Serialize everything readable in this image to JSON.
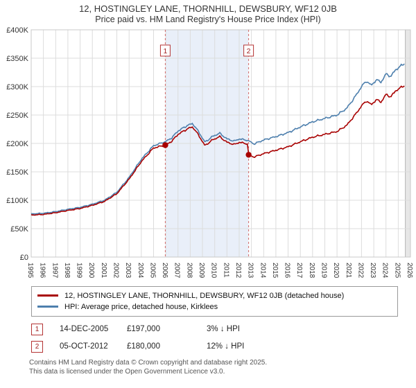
{
  "header": {
    "title": "12, HOSTINGLEY LANE, THORNHILL, DEWSBURY, WF12 0JB",
    "subtitle": "Price paid vs. HM Land Registry's House Price Index (HPI)"
  },
  "chart_data": {
    "type": "line",
    "title": "12, HOSTINGLEY LANE, THORNHILL, DEWSBURY, WF12 0JB",
    "subtitle": "Price paid vs. HM Land Registry's House Price Index (HPI)",
    "xlim": [
      1995,
      2026
    ],
    "ylim": [
      0,
      400000
    ],
    "grid": true,
    "xticks": [
      1995,
      1996,
      1997,
      1998,
      1999,
      2000,
      2001,
      2002,
      2003,
      2004,
      2005,
      2006,
      2007,
      2008,
      2009,
      2010,
      2011,
      2012,
      2013,
      2014,
      2015,
      2016,
      2017,
      2018,
      2019,
      2020,
      2021,
      2022,
      2023,
      2024,
      2025,
      2026
    ],
    "yticks": [
      {
        "label": "£0",
        "value": 0
      },
      {
        "label": "£50K",
        "value": 50000
      },
      {
        "label": "£100K",
        "value": 100000
      },
      {
        "label": "£150K",
        "value": 150000
      },
      {
        "label": "£200K",
        "value": 200000
      },
      {
        "label": "£250K",
        "value": 250000
      },
      {
        "label": "£300K",
        "value": 300000
      },
      {
        "label": "£350K",
        "value": 350000
      },
      {
        "label": "£400K",
        "value": 400000
      }
    ],
    "series": [
      {
        "name": "12, HOSTINGLEY LANE, THORNHILL, DEWSBURY, WF12 0JB (detached house)",
        "color": "#a80000",
        "anchors": [
          [
            1995,
            74000
          ],
          [
            1996,
            75000
          ],
          [
            1997,
            78000
          ],
          [
            1998,
            82000
          ],
          [
            1999,
            85500
          ],
          [
            2000,
            91000
          ],
          [
            2001,
            98000
          ],
          [
            2002,
            111500
          ],
          [
            2003,
            137000
          ],
          [
            2004,
            168000
          ],
          [
            2005,
            192000
          ],
          [
            2005.96,
            197000
          ],
          [
            2006.5,
            204000
          ],
          [
            2007,
            216000
          ],
          [
            2007.8,
            226000
          ],
          [
            2008.2,
            229000
          ],
          [
            2008.7,
            214000
          ],
          [
            2009.2,
            196000
          ],
          [
            2009.8,
            206000
          ],
          [
            2010.4,
            212000
          ],
          [
            2011,
            202000
          ],
          [
            2011.6,
            198000
          ],
          [
            2012,
            202000
          ],
          [
            2012.7,
            199000
          ],
          [
            2012.77,
            180000
          ],
          [
            2013.2,
            176000
          ],
          [
            2014,
            182000
          ],
          [
            2015,
            188000
          ],
          [
            2016,
            194000
          ],
          [
            2017,
            203000
          ],
          [
            2018,
            211000
          ],
          [
            2019,
            216000
          ],
          [
            2020,
            221000
          ],
          [
            2020.8,
            232000
          ],
          [
            2021.5,
            251000
          ],
          [
            2022,
            266000
          ],
          [
            2022.4,
            275000
          ],
          [
            2022.8,
            268000
          ],
          [
            2023.2,
            277000
          ],
          [
            2023.6,
            273000
          ],
          [
            2024,
            286000
          ],
          [
            2024.4,
            282000
          ],
          [
            2024.8,
            293000
          ],
          [
            2025.2,
            298000
          ],
          [
            2025.58,
            303000
          ]
        ]
      },
      {
        "name": "HPI: Average price, detached house, Kirklees",
        "color": "#4d7fad",
        "anchors": [
          [
            1995,
            76000
          ],
          [
            1996,
            77000
          ],
          [
            1997,
            80000
          ],
          [
            1998,
            84000
          ],
          [
            1999,
            87500
          ],
          [
            2000,
            93000
          ],
          [
            2001,
            100000
          ],
          [
            2002,
            114000
          ],
          [
            2003,
            140000
          ],
          [
            2004,
            172000
          ],
          [
            2005,
            196000
          ],
          [
            2005.96,
            203000
          ],
          [
            2006.5,
            210000
          ],
          [
            2007,
            222000
          ],
          [
            2007.8,
            232000
          ],
          [
            2008.2,
            235000
          ],
          [
            2008.7,
            220000
          ],
          [
            2009.2,
            202000
          ],
          [
            2009.8,
            212000
          ],
          [
            2010.4,
            218000
          ],
          [
            2011,
            208000
          ],
          [
            2011.6,
            204000
          ],
          [
            2012,
            208000
          ],
          [
            2012.77,
            205000
          ],
          [
            2013.2,
            199000
          ],
          [
            2014,
            206000
          ],
          [
            2015,
            212000
          ],
          [
            2016,
            219000
          ],
          [
            2017,
            229000
          ],
          [
            2018,
            238000
          ],
          [
            2019,
            244000
          ],
          [
            2020,
            250000
          ],
          [
            2020.8,
            262000
          ],
          [
            2021.5,
            283000
          ],
          [
            2022,
            300000
          ],
          [
            2022.4,
            310000
          ],
          [
            2022.8,
            302000
          ],
          [
            2023.2,
            312000
          ],
          [
            2023.6,
            308000
          ],
          [
            2024,
            322000
          ],
          [
            2024.4,
            318000
          ],
          [
            2024.8,
            330000
          ],
          [
            2025.2,
            336000
          ],
          [
            2025.58,
            342000
          ]
        ]
      }
    ],
    "shaded_region": {
      "from": 2005.96,
      "to": 2012.77,
      "color": "#e9eff9"
    },
    "future_region": {
      "from": 2025.58,
      "to": 2026,
      "color": "#e7e7e7"
    },
    "markers": [
      {
        "label": "1",
        "x": 2005.96,
        "value": 197000,
        "date": "14-DEC-2005",
        "price": "£197,000",
        "note": "3% ↓ HPI"
      },
      {
        "label": "2",
        "x": 2012.77,
        "value": 180000,
        "date": "05-OCT-2012",
        "price": "£180,000",
        "note": "12% ↓ HPI"
      }
    ],
    "marker_line_color": "#d26a6a",
    "grid_color": "#dcdcdc",
    "border_color": "#c8c8c8"
  },
  "legend": {
    "items": [
      {
        "label": "12, HOSTINGLEY LANE, THORNHILL, DEWSBURY, WF12 0JB (detached house)",
        "color": "#a80000"
      },
      {
        "label": "HPI: Average price, detached house, Kirklees",
        "color": "#4d7fad"
      }
    ]
  },
  "footer": {
    "line1": "Contains HM Land Registry data © Crown copyright and database right 2025.",
    "line2": "This data is licensed under the Open Government Licence v3.0."
  }
}
